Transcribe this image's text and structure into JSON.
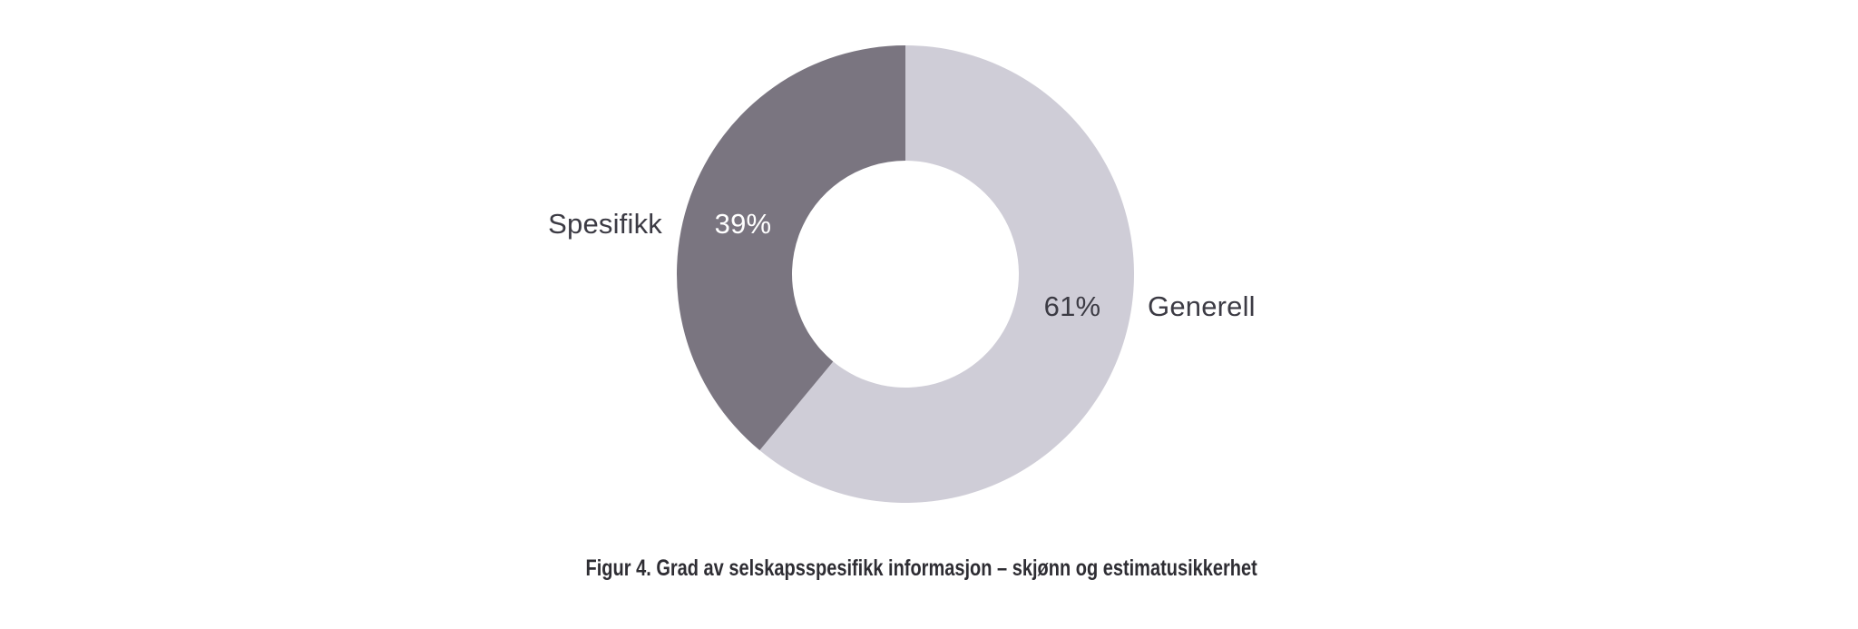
{
  "chart_data": {
    "type": "pie",
    "subtype": "donut",
    "title": "Figur 4. Grad av selskapsspesifikk informasjon – skjønn og estimatusikkerhet",
    "segments": [
      {
        "label": "Generell",
        "value": 61,
        "value_label": "61%",
        "color": "#cfcdd7",
        "value_label_color": "#3c3b44",
        "label_side": "right"
      },
      {
        "label": "Spesifikk",
        "value": 39,
        "value_label": "39%",
        "color": "#7a7580",
        "value_label_color": "#ffffff",
        "label_side": "left"
      }
    ],
    "start_angle_deg": 0,
    "direction": "clockwise",
    "inner_radius_ratio": 0.5,
    "outer_radius_px": 252,
    "inner_radius_px": 125,
    "hole_color": "#ffffff",
    "background": "#ffffff",
    "text_color": "#3c3b44",
    "caption_color": "#2e2d33",
    "legend_position": "none",
    "labels_outside": true
  }
}
